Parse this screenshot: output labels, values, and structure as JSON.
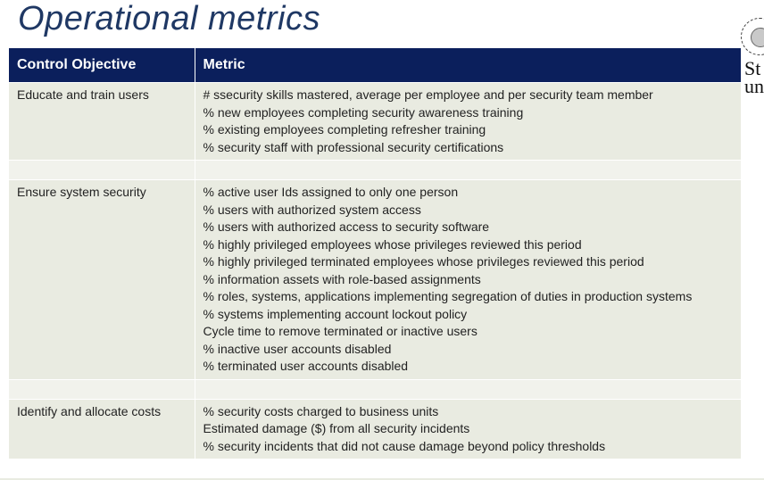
{
  "slide": {
    "title": "Operational metrics",
    "logo_text": "St\nun"
  },
  "table": {
    "headers": [
      "Control Objective",
      "Metric"
    ],
    "rows": [
      {
        "objective": "Educate and train users",
        "metrics": [
          "# ssecurity skills mastered, average per employee and per security team member",
          "% new employees completing security awareness training",
          "% existing employees completing refresher training",
          "% security staff with professional security certifications"
        ]
      },
      {
        "objective": "Ensure system security",
        "metrics": [
          "% active user Ids assigned to only one person",
          "% users with authorized system access",
          "% users with authorized access to security software",
          "% highly privileged employees whose privileges reviewed this period",
          "% highly privileged terminated employees whose privileges reviewed this period",
          "% information assets with role-based assignments",
          "% roles, systems, applications implementing segregation of duties in production systems",
          "% systems implementing account lockout policy",
          "Cycle time to remove terminated or inactive users",
          "% inactive user accounts disabled",
          "% terminated user accounts disabled"
        ]
      },
      {
        "objective": "Identify and allocate costs",
        "metrics": [
          "% security costs charged to business units",
          "Estimated damage ($) from all security incidents",
          "% security incidents that did not cause damage beyond policy thresholds"
        ]
      }
    ]
  }
}
